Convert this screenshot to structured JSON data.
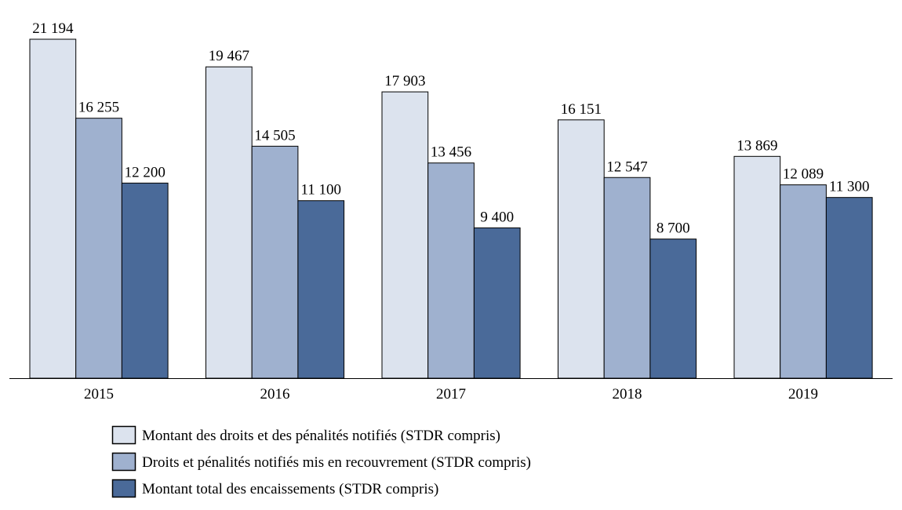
{
  "chart_data": {
    "type": "bar",
    "categories": [
      "2015",
      "2016",
      "2017",
      "2018",
      "2019"
    ],
    "series": [
      {
        "name": "Montant des droits et des pénalités notifiés (STDR compris)",
        "values": [
          21194,
          19467,
          17903,
          16151,
          13869
        ],
        "color": "#dce3ee",
        "labels": [
          "21 194",
          "19 467",
          "17 903",
          "16 151",
          "13 869"
        ]
      },
      {
        "name": "Droits et pénalités notifiés mis en recouvrement (STDR compris)",
        "values": [
          16255,
          14505,
          13456,
          12547,
          12089
        ],
        "color": "#9fb1cf",
        "labels": [
          "16 255",
          "14 505",
          "13 456",
          "12 547",
          "12 089"
        ]
      },
      {
        "name": "Montant total des encaissements (STDR compris)",
        "values": [
          12200,
          11100,
          9400,
          8700,
          11300
        ],
        "color": "#4a6a99",
        "labels": [
          "12 200",
          "11 100",
          "9 400",
          "8 700",
          "11 300"
        ]
      }
    ],
    "title": "",
    "xlabel": "",
    "ylabel": "",
    "ylim": [
      0,
      22000
    ],
    "grid": false,
    "legend": "bottom"
  }
}
